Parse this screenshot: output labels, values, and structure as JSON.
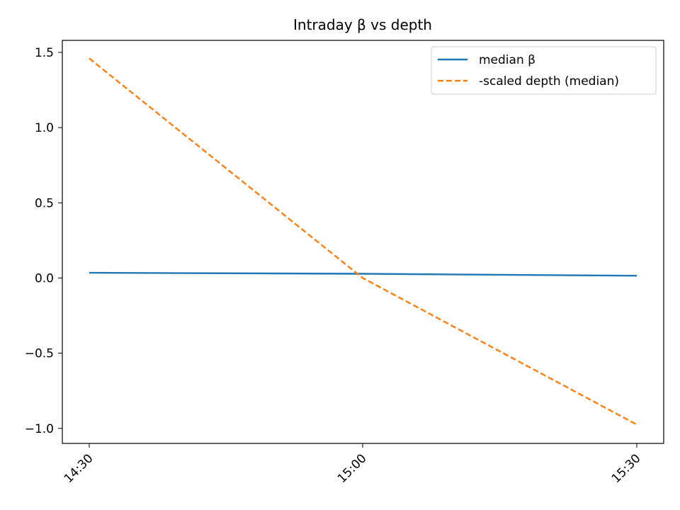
{
  "chart_data": {
    "type": "line",
    "title": "Intraday β vs depth",
    "xlabel": "",
    "ylabel": "",
    "x": [
      "14:30",
      "15:00",
      "15:30"
    ],
    "ylim": [
      -1.1,
      1.58
    ],
    "yticks": [
      -1.0,
      -0.5,
      0.0,
      0.5,
      1.0,
      1.5
    ],
    "ytick_labels": [
      "−1.0",
      "−0.5",
      "0.0",
      "0.5",
      "1.0",
      "1.5"
    ],
    "series": [
      {
        "name": "median β",
        "values": [
          0.035,
          0.028,
          0.015
        ],
        "color": "#1f77b4",
        "style": "solid"
      },
      {
        "name": "-scaled depth (median)",
        "values": [
          1.46,
          0.0,
          -0.975
        ],
        "color": "#ff7f0e",
        "style": "dashed"
      }
    ],
    "grid": false,
    "legend_position": "top-right"
  }
}
